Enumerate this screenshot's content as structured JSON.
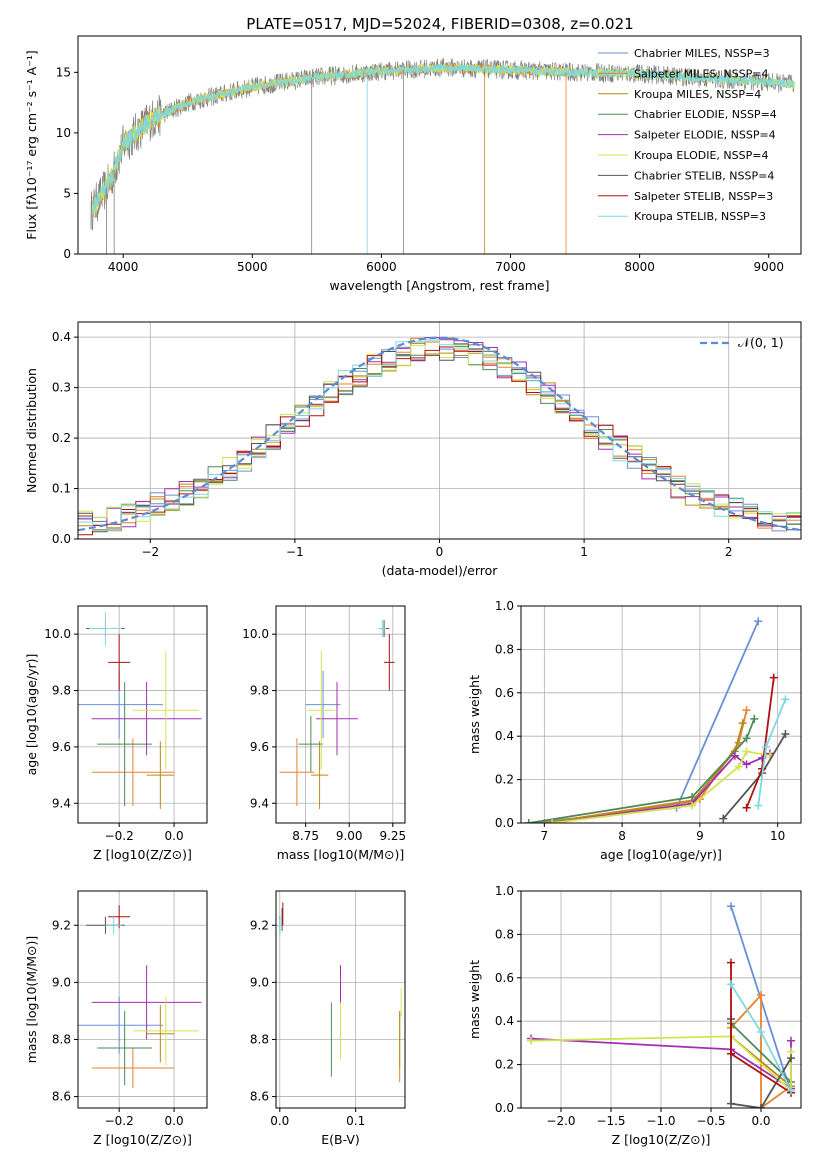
{
  "figure_title": "PLATE=0517, MJD=52024, FIBERID=0308, z=0.021",
  "colors": {
    "chabrier_miles": "#6a8fd8",
    "salpeter_miles": "#e8822e",
    "kroupa_miles": "#b88a1a",
    "chabrier_elodie": "#4f8a55",
    "salpeter_elodie": "#a030b0",
    "kroupa_elodie": "#d4e350",
    "chabrier_stelib": "#555555",
    "salpeter_stelib": "#b01010",
    "kroupa_stelib": "#7fd8e0",
    "normal": "#5b8bd8"
  },
  "chart_data": [
    {
      "id": "spectrum",
      "type": "line",
      "title": "PLATE=0517, MJD=52024, FIBERID=0308, z=0.021",
      "xlabel": "wavelength [Angstrom, rest frame]",
      "ylabel": "Flux [fλ10⁻¹⁷ erg cm⁻² s⁻¹ A⁻¹]",
      "xlim": [
        3650,
        9250
      ],
      "ylim": [
        0,
        18
      ],
      "xticks": [
        "4000",
        "5000",
        "6000",
        "7000",
        "8000",
        "9000"
      ],
      "yticks": [
        "0",
        "5",
        "10",
        "15"
      ],
      "legend_position": "right",
      "legend": [
        "Chabrier MILES, NSSP=3",
        "Salpeter MILES, NSSP=4",
        "Kroupa MILES, NSSP=4",
        "Chabrier ELODIE, NSSP=4",
        "Salpeter ELODIE, NSSP=4",
        "Kroupa ELODIE, NSSP=4",
        "Chabrier STELIB, NSSP=4",
        "Salpeter STELIB, NSSP=3",
        "Kroupa STELIB, NSSP=3"
      ],
      "continuum": {
        "x": [
          3750,
          3900,
          4000,
          4200,
          4500,
          5000,
          5500,
          6000,
          6500,
          7000,
          7500,
          8000,
          8500,
          9000,
          9200
        ],
        "y": [
          3.5,
          6,
          9,
          11,
          12.5,
          13.8,
          14.6,
          15.1,
          15.4,
          15.2,
          15,
          14.9,
          14.5,
          14.2,
          14
        ]
      }
    },
    {
      "id": "residuals",
      "type": "bar",
      "xlabel": "(data-model)/error",
      "ylabel": "Normed distribution",
      "xlim": [
        -2.5,
        2.5
      ],
      "ylim": [
        0,
        0.43
      ],
      "xticks": [
        "−2",
        "−1",
        "0",
        "1",
        "2"
      ],
      "yticks": [
        "0.0",
        "0.1",
        "0.2",
        "0.3",
        "0.4"
      ],
      "grid": true,
      "legend": "𝒩(0, 1)",
      "legend_position": "top-right",
      "bins": 50
    },
    {
      "id": "age_vs_Z",
      "type": "scatter",
      "xlabel": "Z [log10(Z/Z⊙)]",
      "ylabel": "age  [log10(age/yr)]",
      "xlim": [
        -0.35,
        0.12
      ],
      "ylim": [
        9.33,
        10.1
      ],
      "xticks": [
        "−0.2",
        "0.0"
      ],
      "yticks": [
        "9.4",
        "9.6",
        "9.8",
        "10.0"
      ],
      "grid": true,
      "points": [
        {
          "key": "chabrier_miles",
          "x": -0.2,
          "y": 9.75,
          "xerr": 0.16,
          "yerr": 0.12
        },
        {
          "key": "salpeter_miles",
          "x": -0.15,
          "y": 9.51,
          "xerr": 0.15,
          "yerr": 0.12
        },
        {
          "key": "kroupa_miles",
          "x": -0.05,
          "y": 9.5,
          "xerr": 0.05,
          "yerr": 0.12
        },
        {
          "key": "chabrier_elodie",
          "x": -0.18,
          "y": 9.61,
          "xerr": 0.1,
          "yerr": 0.22
        },
        {
          "key": "salpeter_elodie",
          "x": -0.1,
          "y": 9.7,
          "xerr": 0.2,
          "yerr": 0.13
        },
        {
          "key": "kroupa_elodie",
          "x": -0.03,
          "y": 9.73,
          "xerr": 0.12,
          "yerr": 0.21
        },
        {
          "key": "chabrier_stelib",
          "x": -0.25,
          "y": 10.02,
          "xerr": 0.07,
          "yerr": 0.03
        },
        {
          "key": "salpeter_stelib",
          "x": -0.2,
          "y": 9.9,
          "xerr": 0.04,
          "yerr": 0.1
        },
        {
          "key": "kroupa_stelib",
          "x": -0.25,
          "y": 10.02,
          "xerr": 0.06,
          "yerr": 0.06
        }
      ]
    },
    {
      "id": "age_vs_mass",
      "type": "scatter",
      "xlabel": "mass [log10(M/M⊙)]",
      "ylabel": "",
      "xlim": [
        8.58,
        9.32
      ],
      "ylim": [
        9.33,
        10.1
      ],
      "xticks": [
        "8.75",
        "9.00",
        "9.25"
      ],
      "yticks": [
        "9.4",
        "9.6",
        "9.8",
        "10.0"
      ],
      "grid": true,
      "points": [
        {
          "key": "chabrier_miles",
          "x": 8.85,
          "y": 9.75,
          "xerr": 0.1,
          "yerr": 0.12
        },
        {
          "key": "salpeter_miles",
          "x": 8.7,
          "y": 9.51,
          "xerr": 0.1,
          "yerr": 0.12
        },
        {
          "key": "kroupa_miles",
          "x": 8.83,
          "y": 9.5,
          "xerr": 0.05,
          "yerr": 0.12
        },
        {
          "key": "chabrier_elodie",
          "x": 8.78,
          "y": 9.61,
          "xerr": 0.07,
          "yerr": 0.1
        },
        {
          "key": "salpeter_elodie",
          "x": 8.93,
          "y": 9.7,
          "xerr": 0.12,
          "yerr": 0.13
        },
        {
          "key": "kroupa_elodie",
          "x": 8.84,
          "y": 9.73,
          "xerr": 0.08,
          "yerr": 0.21
        },
        {
          "key": "chabrier_stelib",
          "x": 9.2,
          "y": 10.02,
          "xerr": 0.03,
          "yerr": 0.03
        },
        {
          "key": "salpeter_stelib",
          "x": 9.23,
          "y": 9.9,
          "xerr": 0.03,
          "yerr": 0.1
        },
        {
          "key": "kroupa_stelib",
          "x": 9.19,
          "y": 10.02,
          "xerr": 0.02,
          "yerr": 0.03
        }
      ]
    },
    {
      "id": "mass_weight_vs_age",
      "type": "line",
      "xlabel": "age  [log10(age/yr)]",
      "ylabel": "mass weight",
      "xlim": [
        6.7,
        10.3
      ],
      "ylim": [
        0,
        1
      ],
      "xticks": [
        "7",
        "8",
        "9",
        "10"
      ],
      "yticks": [
        "0.0",
        "0.2",
        "0.4",
        "0.6",
        "0.8",
        "1.0"
      ],
      "grid": true,
      "series": [
        {
          "key": "chabrier_miles",
          "x": [
            6.8,
            8.7,
            9.75
          ],
          "y": [
            0.0,
            0.07,
            0.93
          ]
        },
        {
          "key": "salpeter_miles",
          "x": [
            7.0,
            9.0,
            9.5,
            9.6
          ],
          "y": [
            0.0,
            0.11,
            0.37,
            0.52
          ]
        },
        {
          "key": "kroupa_miles",
          "x": [
            7.0,
            8.9,
            9.45,
            9.55
          ],
          "y": [
            0.0,
            0.1,
            0.33,
            0.46
          ]
        },
        {
          "key": "chabrier_elodie",
          "x": [
            6.8,
            8.9,
            9.6,
            9.7
          ],
          "y": [
            0.0,
            0.12,
            0.39,
            0.48
          ]
        },
        {
          "key": "salpeter_elodie",
          "x": [
            7.1,
            8.9,
            9.45,
            9.6,
            9.8,
            9.9
          ],
          "y": [
            0.0,
            0.09,
            0.31,
            0.27,
            0.3,
            0.32
          ]
        },
        {
          "key": "kroupa_elodie",
          "x": [
            7.1,
            8.9,
            9.5,
            9.6,
            9.9
          ],
          "y": [
            0.0,
            0.08,
            0.26,
            0.33,
            0.31
          ]
        },
        {
          "key": "chabrier_stelib",
          "x": [
            9.3,
            9.8,
            10.1
          ],
          "y": [
            0.02,
            0.23,
            0.41
          ]
        },
        {
          "key": "salpeter_stelib",
          "x": [
            9.6,
            9.8,
            9.95
          ],
          "y": [
            0.07,
            0.25,
            0.67
          ]
        },
        {
          "key": "kroupa_stelib",
          "x": [
            9.75,
            9.85,
            10.1
          ],
          "y": [
            0.08,
            0.35,
            0.57
          ]
        }
      ]
    },
    {
      "id": "mass_vs_Z",
      "type": "scatter",
      "xlabel": "Z [log10(Z/Z⊙)]",
      "ylabel": "mass [log10(M/M⊙)]",
      "xlim": [
        -0.35,
        0.12
      ],
      "ylim": [
        8.56,
        9.32
      ],
      "xticks": [
        "−0.2",
        "0.0"
      ],
      "yticks": [
        "8.6",
        "8.8",
        "9.0",
        "9.2"
      ],
      "grid": true,
      "points": [
        {
          "key": "chabrier_miles",
          "x": -0.2,
          "y": 8.85,
          "xerr": 0.16,
          "yerr": 0.1
        },
        {
          "key": "salpeter_miles",
          "x": -0.15,
          "y": 8.7,
          "xerr": 0.15,
          "yerr": 0.07
        },
        {
          "key": "kroupa_miles",
          "x": -0.05,
          "y": 8.82,
          "xerr": 0.05,
          "yerr": 0.1
        },
        {
          "key": "chabrier_elodie",
          "x": -0.18,
          "y": 8.77,
          "xerr": 0.1,
          "yerr": 0.13
        },
        {
          "key": "salpeter_elodie",
          "x": -0.1,
          "y": 8.93,
          "xerr": 0.2,
          "yerr": 0.13
        },
        {
          "key": "kroupa_elodie",
          "x": -0.03,
          "y": 8.83,
          "xerr": 0.12,
          "yerr": 0.12
        },
        {
          "key": "chabrier_stelib",
          "x": -0.25,
          "y": 9.2,
          "xerr": 0.07,
          "yerr": 0.03
        },
        {
          "key": "salpeter_stelib",
          "x": -0.2,
          "y": 9.23,
          "xerr": 0.04,
          "yerr": 0.04
        },
        {
          "key": "kroupa_stelib",
          "x": -0.22,
          "y": 9.2,
          "xerr": 0.03,
          "yerr": 0.03
        }
      ]
    },
    {
      "id": "mass_vs_ebv",
      "type": "scatter",
      "xlabel": "E(B-V)",
      "ylabel": "",
      "xlim": [
        -0.005,
        0.165
      ],
      "ylim": [
        8.56,
        9.32
      ],
      "xticks": [
        "0.0",
        "0.1"
      ],
      "yticks": [
        "8.6",
        "8.8",
        "9.0",
        "9.2"
      ],
      "grid": true,
      "points": [
        {
          "key": "chabrier_miles",
          "x": 0.0,
          "y": 9.2,
          "xerr": 0,
          "yerr": 0.03
        },
        {
          "key": "salpeter_miles",
          "x": 0.158,
          "y": 8.77,
          "xerr": 0,
          "yerr": 0.12
        },
        {
          "key": "kroupa_miles",
          "x": 0.158,
          "y": 8.8,
          "xerr": 0,
          "yerr": 0.1
        },
        {
          "key": "chabrier_elodie",
          "x": 0.068,
          "y": 8.8,
          "xerr": 0,
          "yerr": 0.13
        },
        {
          "key": "salpeter_elodie",
          "x": 0.08,
          "y": 8.95,
          "xerr": 0,
          "yerr": 0.11
        },
        {
          "key": "kroupa_elodie",
          "x": 0.08,
          "y": 8.83,
          "xerr": 0,
          "yerr": 0.1
        },
        {
          "key": "chabrier_stelib",
          "x": 0.003,
          "y": 9.22,
          "xerr": 0,
          "yerr": 0.04
        },
        {
          "key": "salpeter_stelib",
          "x": 0.004,
          "y": 9.24,
          "xerr": 0,
          "yerr": 0.04
        },
        {
          "key": "kroupa_stelib",
          "x": 0.0,
          "y": 9.19,
          "xerr": 0,
          "yerr": 0.03
        },
        {
          "key": "kroupa_elodie",
          "x": 0.16,
          "y": 8.93,
          "xerr": 0,
          "yerr": 0.05
        }
      ]
    },
    {
      "id": "mass_weight_vs_Z",
      "type": "line",
      "xlabel": "Z [log10(Z/Z⊙)]",
      "ylabel": "mass weight",
      "xlim": [
        -2.4,
        0.4
      ],
      "ylim": [
        0,
        1
      ],
      "xticks": [
        "−2.0",
        "−1.5",
        "−1.0",
        "−0.5",
        "0.0"
      ],
      "yticks": [
        "0.0",
        "0.2",
        "0.4",
        "0.6",
        "0.8",
        "1.0"
      ],
      "grid": true,
      "series": [
        {
          "key": "chabrier_miles",
          "x": [
            -0.3,
            0.3
          ],
          "y": [
            0.93,
            0.07
          ]
        },
        {
          "key": "salpeter_miles",
          "x": [
            -0.3,
            0.0,
            0.0,
            0.3
          ],
          "y": [
            0.37,
            0.52,
            0.0,
            0.1
          ]
        },
        {
          "key": "kroupa_miles",
          "x": [
            -0.3,
            0.3
          ],
          "y": [
            0.33,
            0.1
          ]
        },
        {
          "key": "chabrier_elodie",
          "x": [
            -0.3,
            0.3
          ],
          "y": [
            0.39,
            0.12
          ]
        },
        {
          "key": "salpeter_elodie",
          "x": [
            -2.3,
            -0.3,
            0.3,
            0.3
          ],
          "y": [
            0.32,
            0.27,
            0.09,
            0.31
          ]
        },
        {
          "key": "kroupa_elodie",
          "x": [
            -2.3,
            -0.3,
            0.3,
            0.3
          ],
          "y": [
            0.31,
            0.33,
            0.08,
            0.26
          ]
        },
        {
          "key": "chabrier_stelib",
          "x": [
            -0.3,
            -0.3,
            0.0,
            0.3
          ],
          "y": [
            0.41,
            0.02,
            0.0,
            0.23
          ]
        },
        {
          "key": "salpeter_stelib",
          "x": [
            -0.3,
            -0.3,
            0.3
          ],
          "y": [
            0.67,
            0.25,
            0.07
          ]
        },
        {
          "key": "kroupa_stelib",
          "x": [
            -0.3,
            0.0,
            0.3
          ],
          "y": [
            0.57,
            0.35,
            0.08
          ]
        }
      ]
    }
  ]
}
